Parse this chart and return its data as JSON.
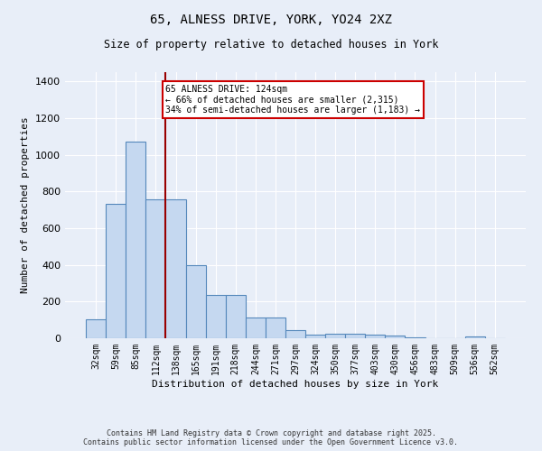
{
  "title_line1": "65, ALNESS DRIVE, YORK, YO24 2XZ",
  "title_line2": "Size of property relative to detached houses in York",
  "xlabel": "Distribution of detached houses by size in York",
  "ylabel": "Number of detached properties",
  "categories": [
    "32sqm",
    "59sqm",
    "85sqm",
    "112sqm",
    "138sqm",
    "165sqm",
    "191sqm",
    "218sqm",
    "244sqm",
    "271sqm",
    "297sqm",
    "324sqm",
    "350sqm",
    "377sqm",
    "403sqm",
    "430sqm",
    "456sqm",
    "483sqm",
    "509sqm",
    "536sqm",
    "562sqm"
  ],
  "values": [
    105,
    730,
    1070,
    755,
    755,
    400,
    235,
    235,
    115,
    115,
    45,
    20,
    25,
    25,
    20,
    15,
    5,
    0,
    0,
    10,
    0
  ],
  "bar_color": "#c5d8f0",
  "bar_edge_color": "#5588bb",
  "vline_x": 3.5,
  "vline_color": "#990000",
  "annotation_text": "65 ALNESS DRIVE: 124sqm\n← 66% of detached houses are smaller (2,315)\n34% of semi-detached houses are larger (1,183) →",
  "annotation_box_color": "#ffffff",
  "annotation_box_edge": "#cc0000",
  "background_color": "#e8eef8",
  "grid_color": "#ffffff",
  "footer_line1": "Contains HM Land Registry data © Crown copyright and database right 2025.",
  "footer_line2": "Contains public sector information licensed under the Open Government Licence v3.0.",
  "ylim": [
    0,
    1450
  ],
  "yticks": [
    0,
    200,
    400,
    600,
    800,
    1000,
    1200,
    1400
  ]
}
